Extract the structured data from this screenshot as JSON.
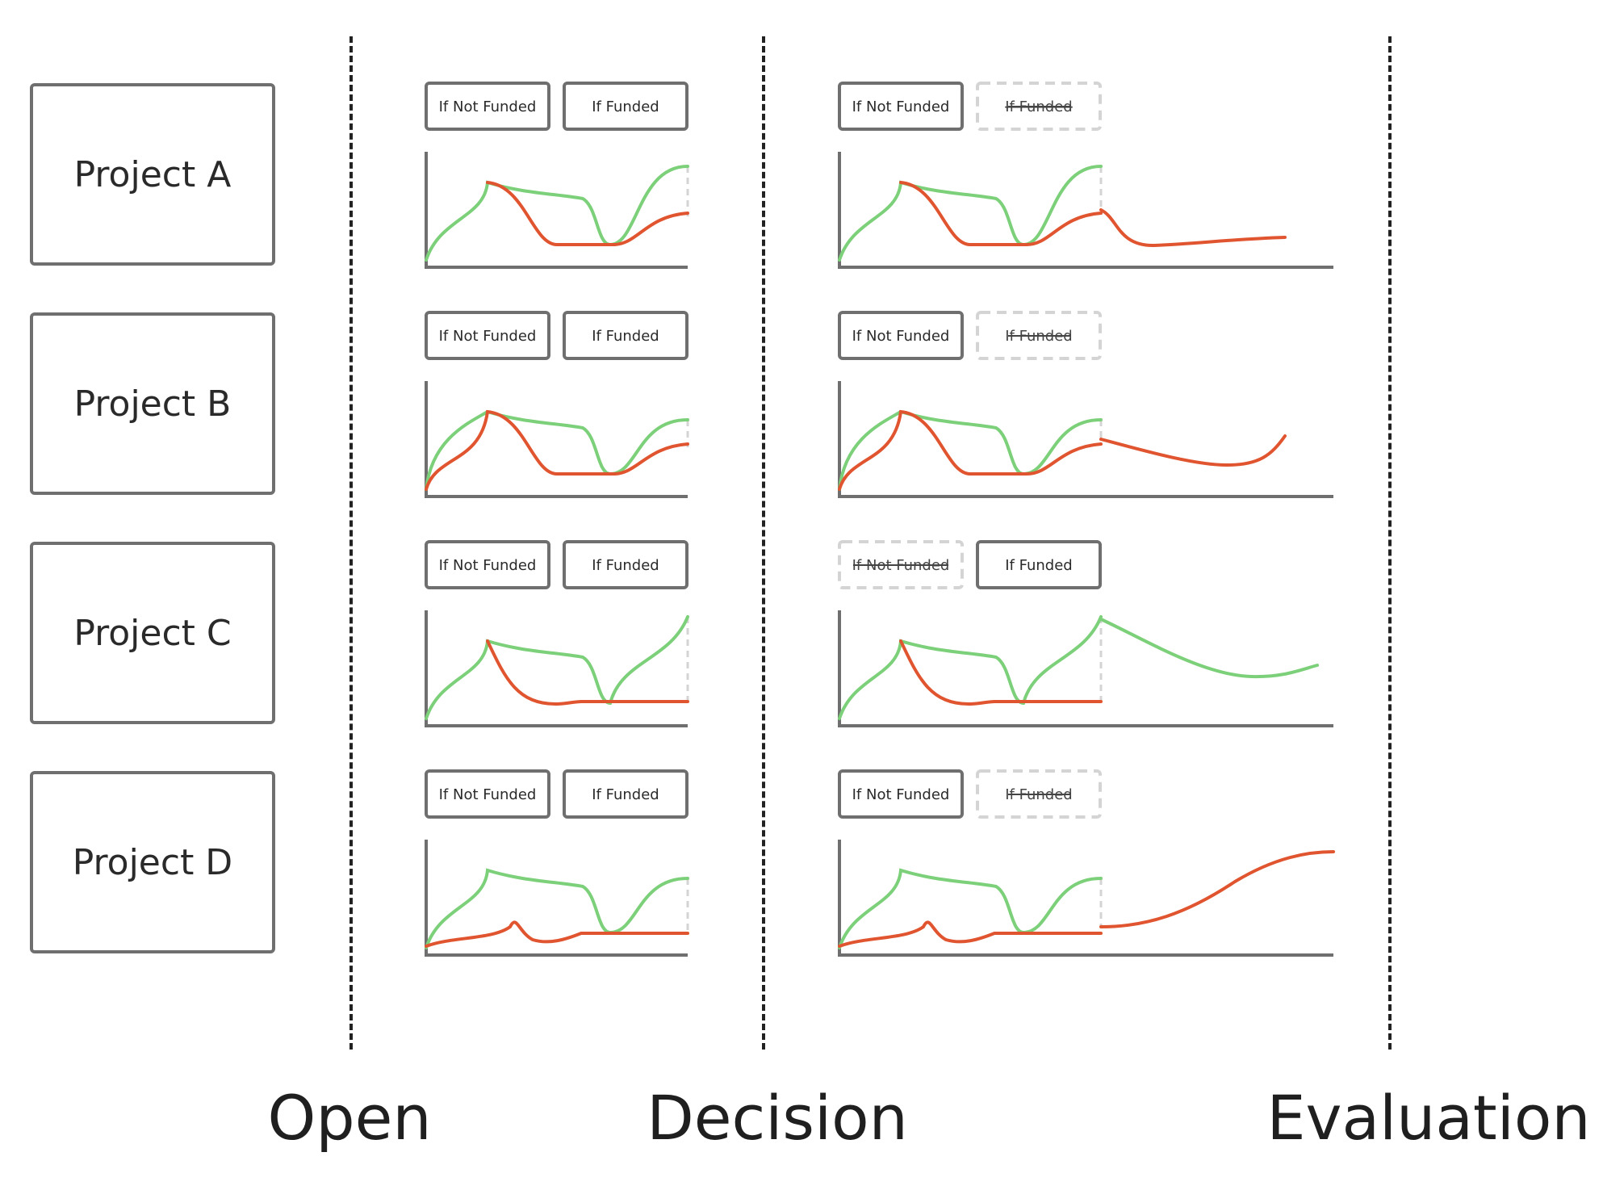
{
  "projects": [
    {
      "label": "Project A",
      "decision": {
        "not_funded": "active",
        "funded": "struck"
      }
    },
    {
      "label": "Project B",
      "decision": {
        "not_funded": "active",
        "funded": "struck"
      }
    },
    {
      "label": "Project C",
      "decision": {
        "not_funded": "struck",
        "funded": "active"
      }
    },
    {
      "label": "Project D",
      "decision": {
        "not_funded": "active",
        "funded": "struck"
      }
    }
  ],
  "buttons": {
    "not_funded": "If Not Funded",
    "funded": "If Funded"
  },
  "phases": {
    "open": "Open",
    "decision": "Decision",
    "evaluation": "Evaluation"
  },
  "colors": {
    "funded_line": "#7dd07a",
    "not_funded_line": "#e0552f",
    "axis": "#6f6f6f",
    "struck": "#d4d4d4"
  }
}
